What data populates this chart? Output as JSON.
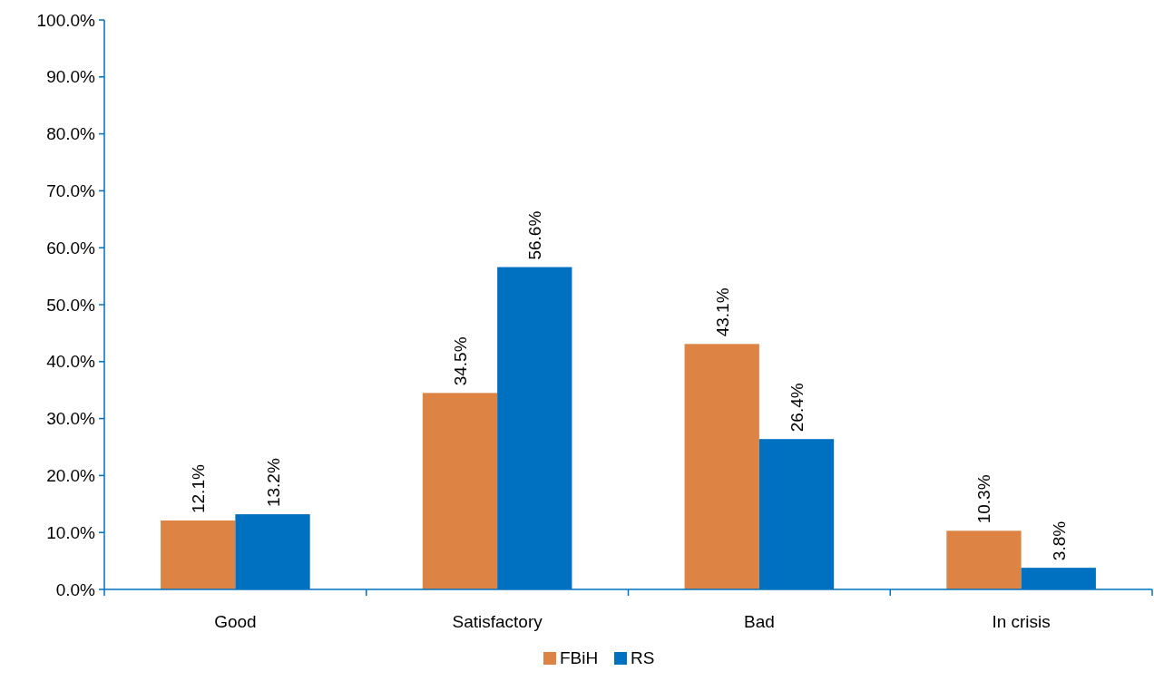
{
  "chart_data": {
    "type": "bar",
    "categories": [
      "Good",
      "Satisfactory",
      "Bad",
      "In crisis"
    ],
    "series": [
      {
        "name": "FBiH",
        "color": "#dd8444",
        "values": [
          12.1,
          34.5,
          43.1,
          10.3
        ],
        "value_labels": [
          "12.1%",
          "34.5%",
          "43.1%",
          "10.3%"
        ]
      },
      {
        "name": "RS",
        "color": "#0070c0",
        "values": [
          13.2,
          56.6,
          26.4,
          3.8
        ],
        "value_labels": [
          "13.2%",
          "56.6%",
          "26.4%",
          "3.8%"
        ]
      }
    ],
    "ylim": [
      0,
      100
    ],
    "yticks": [
      {
        "value": 0,
        "label": "0.0%"
      },
      {
        "value": 10,
        "label": "10.0%"
      },
      {
        "value": 20,
        "label": "20.0%"
      },
      {
        "value": 30,
        "label": "30.0%"
      },
      {
        "value": 40,
        "label": "40.0%"
      },
      {
        "value": 50,
        "label": "50.0%"
      },
      {
        "value": 60,
        "label": "60.0%"
      },
      {
        "value": 70,
        "label": "70.0%"
      },
      {
        "value": 80,
        "label": "80.0%"
      },
      {
        "value": 90,
        "label": "90.0%"
      },
      {
        "value": 100,
        "label": "100.0%"
      }
    ],
    "grid": false,
    "legend": "bottom"
  }
}
